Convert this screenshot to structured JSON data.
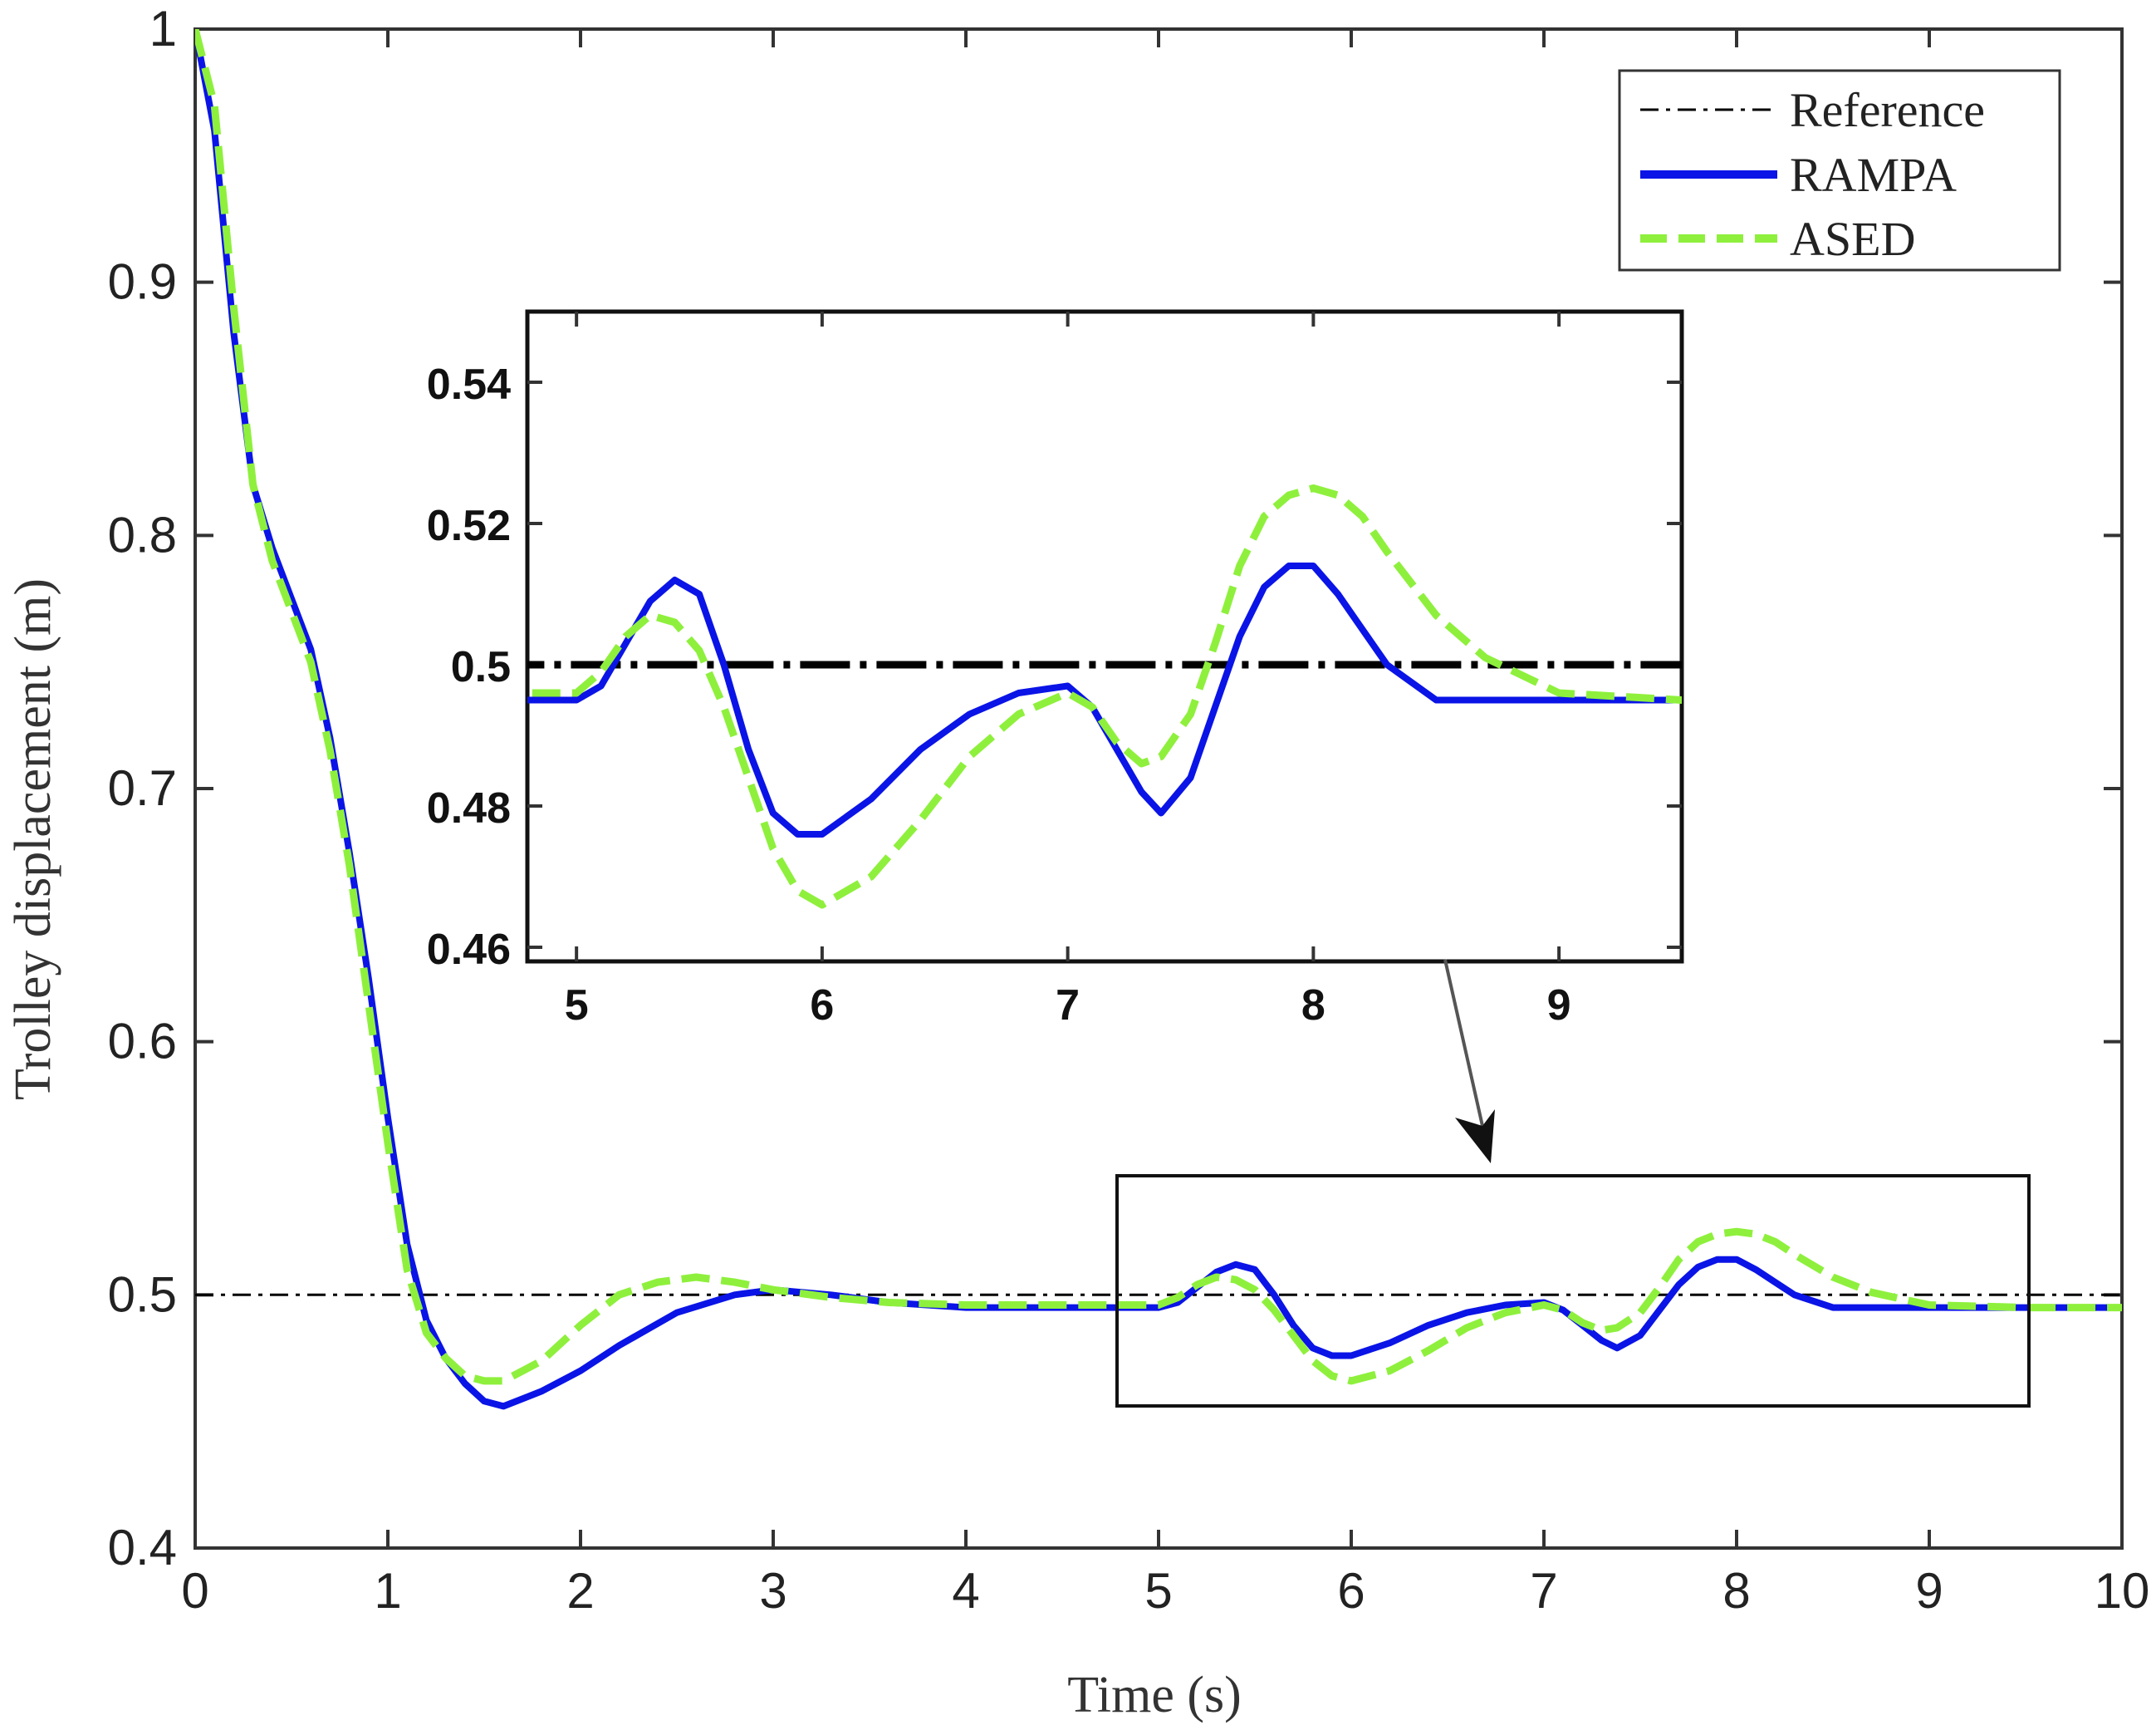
{
  "colors": {
    "reference": "#000000",
    "rampa": "#0a14e6",
    "ased": "#8ef03c",
    "axis": "#333333"
  },
  "chart_data": [
    {
      "type": "line",
      "title": "",
      "xlabel": "Time (s)",
      "ylabel": "Trolley displacement (m)",
      "xlim": [
        0,
        10
      ],
      "ylim": [
        0.4,
        1.0
      ],
      "xticks": [
        "0",
        "1",
        "2",
        "3",
        "4",
        "5",
        "6",
        "7",
        "8",
        "9",
        "10"
      ],
      "yticks": [
        "0.4",
        "0.5",
        "0.6",
        "0.7",
        "0.8",
        "0.9",
        "1"
      ],
      "legend": {
        "placement": "top-right",
        "entries": [
          "Reference",
          "RAMPA",
          "ASED"
        ]
      },
      "series": [
        {
          "name": "Reference",
          "style": "dash-dot",
          "x": [
            0,
            10
          ],
          "y": [
            0.5,
            0.5
          ]
        },
        {
          "name": "RAMPA",
          "style": "solid",
          "x": [
            0,
            0.1,
            0.2,
            0.3,
            0.4,
            0.5,
            0.6,
            0.7,
            0.8,
            0.9,
            1.0,
            1.1,
            1.2,
            1.3,
            1.4,
            1.5,
            1.6,
            1.8,
            2.0,
            2.2,
            2.5,
            2.8,
            3.0,
            3.3,
            3.6,
            4.0,
            4.5,
            4.8,
            5.0,
            5.1,
            5.2,
            5.3,
            5.4,
            5.5,
            5.6,
            5.7,
            5.8,
            5.9,
            6.0,
            6.2,
            6.4,
            6.6,
            6.8,
            7.0,
            7.1,
            7.2,
            7.3,
            7.38,
            7.5,
            7.6,
            7.7,
            7.8,
            7.9,
            8.0,
            8.1,
            8.2,
            8.3,
            8.5,
            8.7,
            9.0,
            9.5,
            10.0
          ],
          "y": [
            1.0,
            0.96,
            0.88,
            0.82,
            0.795,
            0.775,
            0.755,
            0.72,
            0.675,
            0.625,
            0.57,
            0.52,
            0.49,
            0.475,
            0.465,
            0.458,
            0.456,
            0.462,
            0.47,
            0.48,
            0.493,
            0.5,
            0.502,
            0.5,
            0.497,
            0.495,
            0.495,
            0.495,
            0.495,
            0.497,
            0.503,
            0.509,
            0.512,
            0.51,
            0.5,
            0.488,
            0.479,
            0.476,
            0.476,
            0.481,
            0.488,
            0.493,
            0.496,
            0.497,
            0.494,
            0.488,
            0.482,
            0.479,
            0.484,
            0.494,
            0.504,
            0.511,
            0.514,
            0.514,
            0.51,
            0.505,
            0.5,
            0.495,
            0.495,
            0.495,
            0.495,
            0.495
          ]
        },
        {
          "name": "ASED",
          "style": "dashed",
          "x": [
            0,
            0.1,
            0.2,
            0.3,
            0.4,
            0.5,
            0.6,
            0.7,
            0.8,
            0.9,
            1.0,
            1.1,
            1.2,
            1.3,
            1.4,
            1.5,
            1.6,
            1.8,
            2.0,
            2.2,
            2.4,
            2.6,
            2.8,
            3.0,
            3.3,
            3.6,
            4.0,
            4.5,
            4.8,
            5.0,
            5.1,
            5.2,
            5.3,
            5.4,
            5.5,
            5.6,
            5.7,
            5.8,
            5.9,
            6.0,
            6.2,
            6.4,
            6.6,
            6.8,
            7.0,
            7.1,
            7.2,
            7.3,
            7.38,
            7.5,
            7.6,
            7.7,
            7.8,
            7.9,
            8.0,
            8.1,
            8.2,
            8.3,
            8.5,
            8.7,
            9.0,
            9.5,
            10.0
          ],
          "y": [
            1.0,
            0.97,
            0.89,
            0.82,
            0.79,
            0.77,
            0.75,
            0.715,
            0.67,
            0.615,
            0.56,
            0.51,
            0.485,
            0.475,
            0.468,
            0.466,
            0.466,
            0.474,
            0.488,
            0.5,
            0.505,
            0.507,
            0.505,
            0.502,
            0.499,
            0.497,
            0.496,
            0.496,
            0.496,
            0.496,
            0.499,
            0.504,
            0.507,
            0.506,
            0.502,
            0.494,
            0.484,
            0.474,
            0.468,
            0.466,
            0.47,
            0.478,
            0.487,
            0.493,
            0.496,
            0.494,
            0.489,
            0.486,
            0.487,
            0.493,
            0.503,
            0.514,
            0.521,
            0.524,
            0.525,
            0.524,
            0.521,
            0.516,
            0.507,
            0.501,
            0.496,
            0.495,
            0.495
          ]
        }
      ]
    },
    {
      "type": "line",
      "title": "",
      "subtitle": "zoomed inset",
      "xlim": [
        4.8,
        9.5
      ],
      "ylim": [
        0.458,
        0.55
      ],
      "xticks": [
        "5",
        "6",
        "7",
        "8",
        "9"
      ],
      "yticks": [
        "0.46",
        "0.48",
        "0.5",
        "0.52",
        "0.54"
      ],
      "zoom_region": {
        "x": [
          4.8,
          9.5
        ],
        "y": [
          0.458,
          0.548
        ]
      }
    }
  ]
}
